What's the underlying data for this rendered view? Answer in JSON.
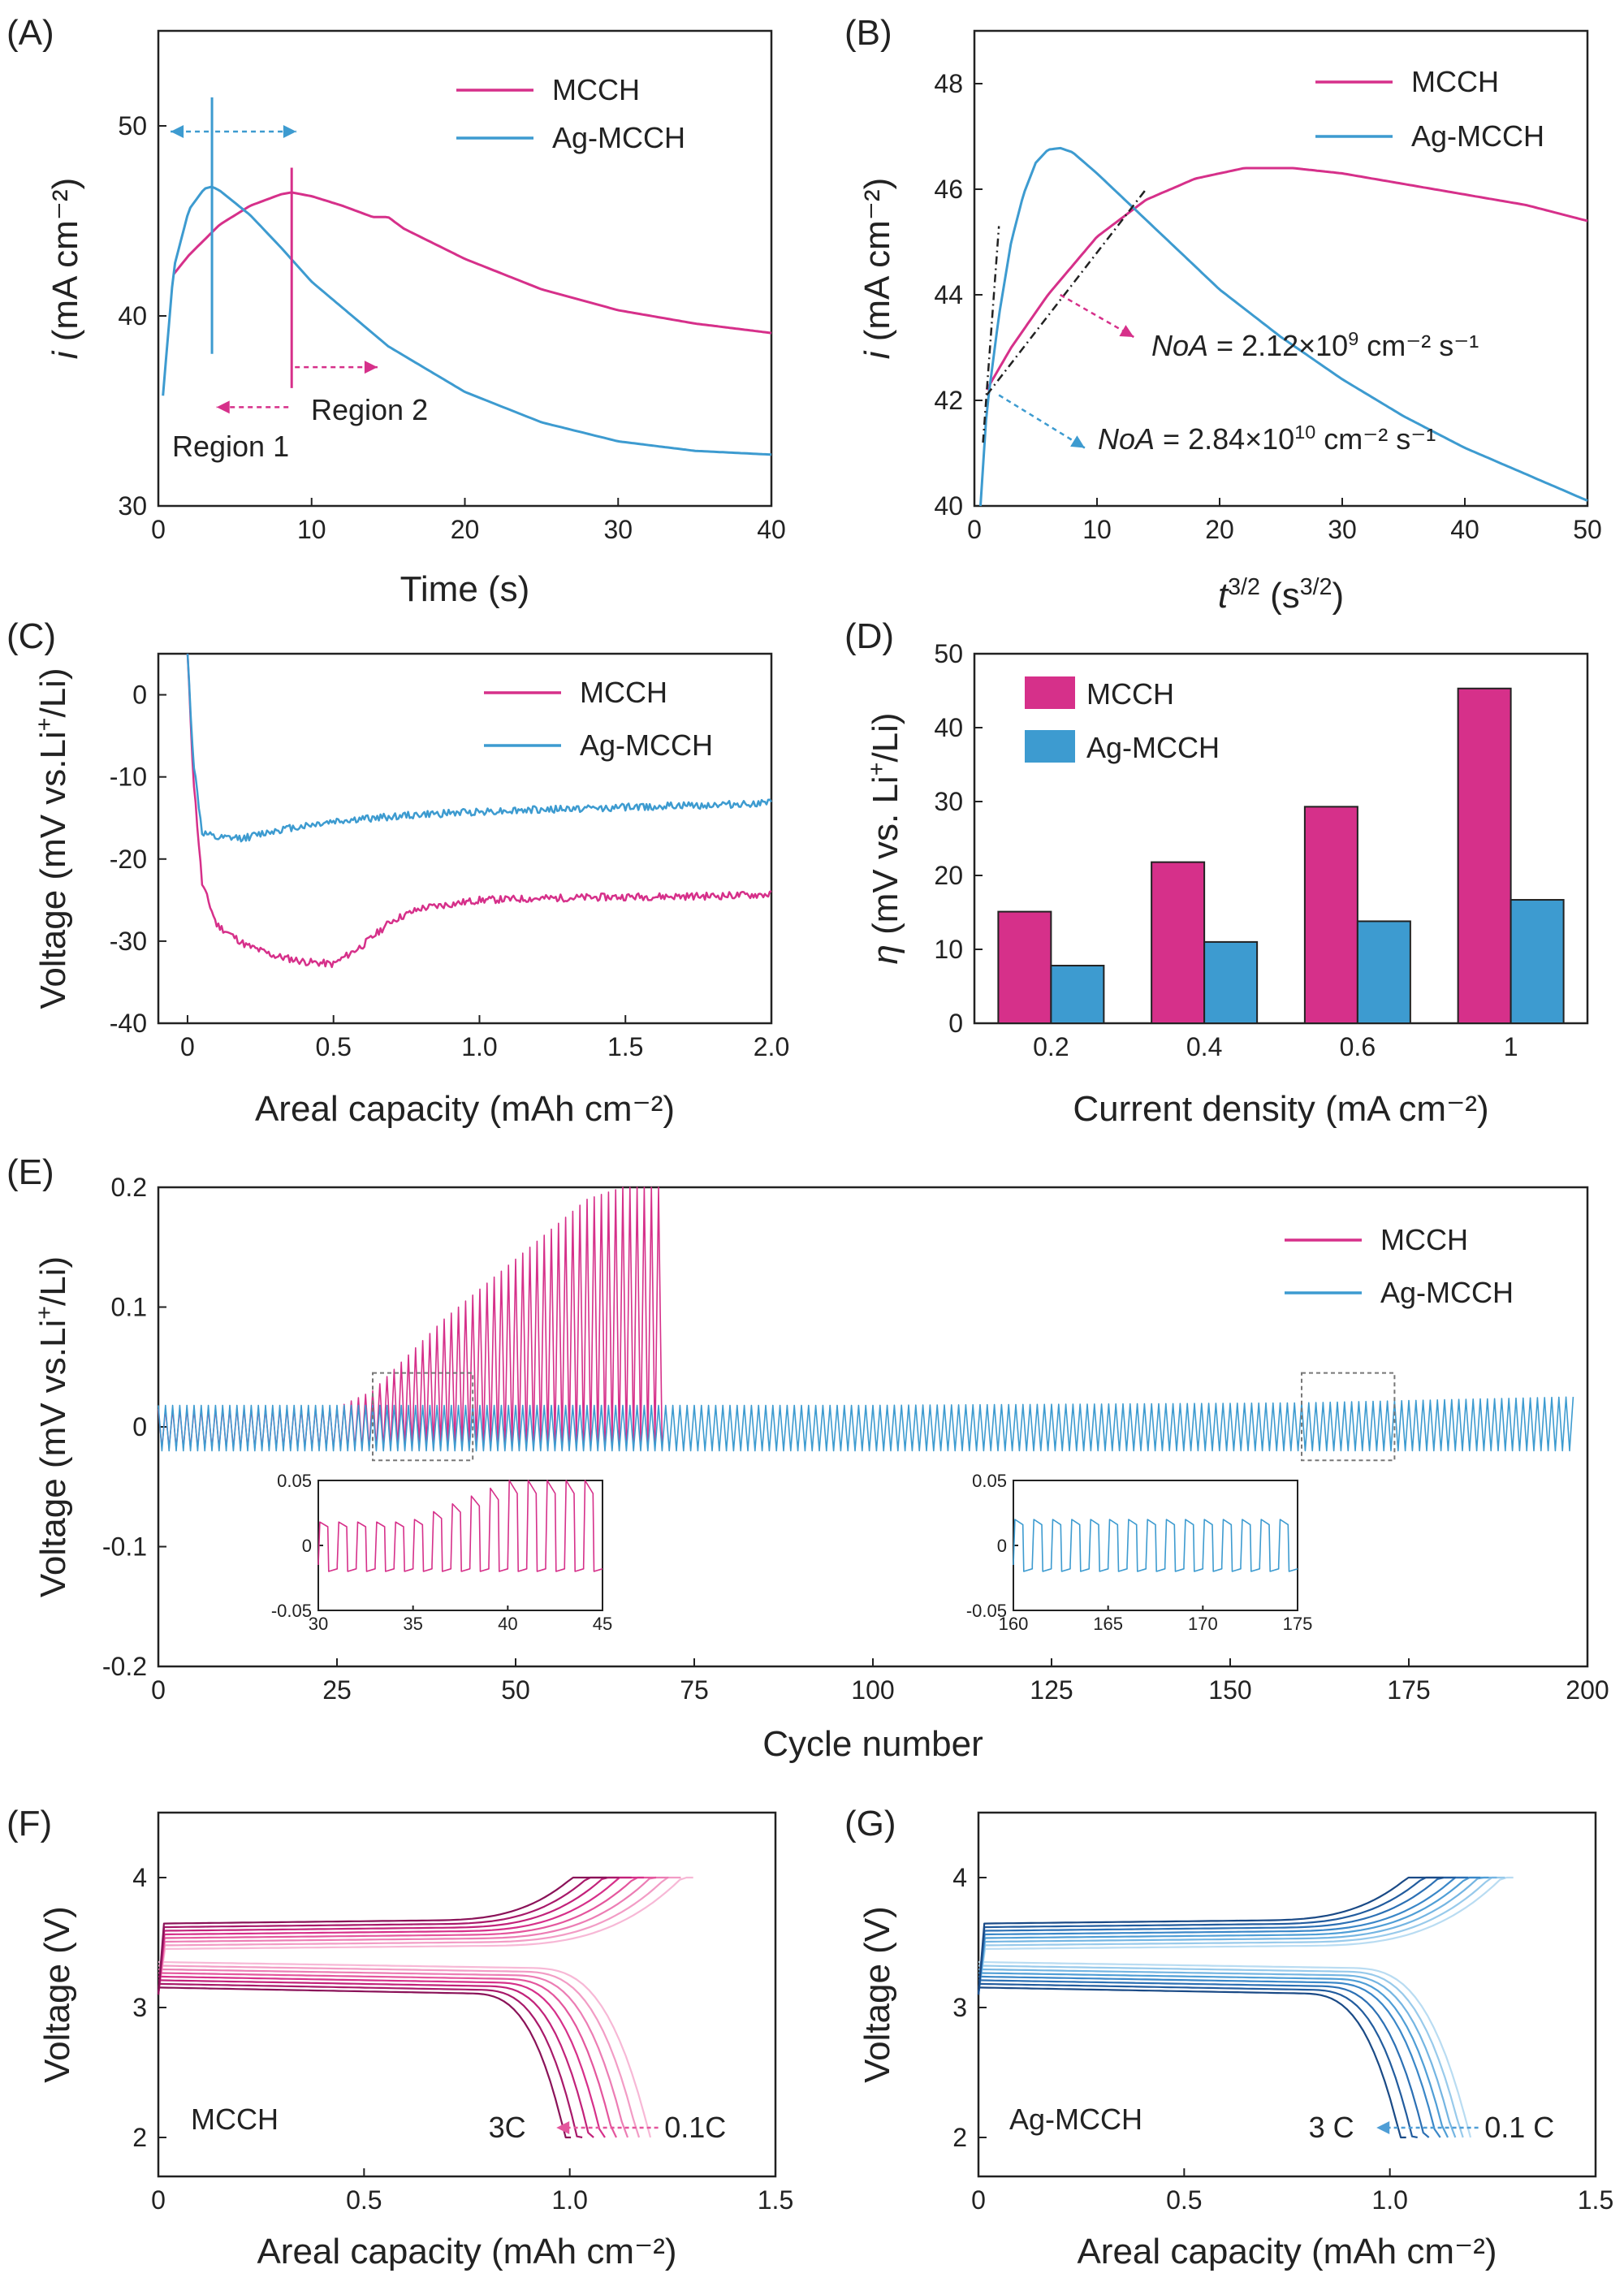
{
  "colors": {
    "mcch": "#d6308a",
    "ag_mcch": "#3d9bd0",
    "axis": "#222222"
  },
  "chart_data": [
    {
      "panel": "(A)",
      "type": "line",
      "xlabel": "Time (s)",
      "ylabel": "i (mA cm⁻²)",
      "xlim": [
        0,
        40
      ],
      "ylim": [
        30,
        55
      ],
      "xticks": [
        "0",
        "10",
        "20",
        "30",
        "40"
      ],
      "yticks": [
        "30",
        "40",
        "50"
      ],
      "legend": [
        "MCCH",
        "Ag-MCCH"
      ],
      "legend_position": "top-right",
      "annotations": [
        "Region 1",
        "Region 2"
      ],
      "series": [
        {
          "name": "MCCH",
          "x": [
            1,
            2,
            4,
            6,
            8,
            8.7,
            10,
            12,
            14,
            15,
            16,
            20,
            25,
            30,
            35,
            40
          ],
          "y": [
            42.2,
            43.2,
            44.8,
            45.8,
            46.4,
            46.5,
            46.3,
            45.8,
            45.2,
            45.2,
            44.6,
            43.0,
            41.4,
            40.3,
            39.6,
            39.1
          ]
        },
        {
          "name": "Ag-MCCH",
          "x": [
            0.3,
            1,
            2,
            3,
            3.5,
            4,
            6,
            8,
            10,
            15,
            20,
            25,
            30,
            35,
            40
          ],
          "y": [
            35.8,
            42.5,
            45.6,
            46.7,
            46.8,
            46.6,
            45.3,
            43.6,
            41.8,
            38.4,
            36.0,
            34.4,
            33.4,
            32.9,
            32.7
          ]
        }
      ]
    },
    {
      "panel": "(B)",
      "type": "line",
      "xlabel": "t^3/2 (s^3/2)",
      "ylabel": "i (mA cm⁻²)",
      "xlim": [
        0,
        50
      ],
      "ylim": [
        40,
        49
      ],
      "xticks": [
        "0",
        "10",
        "20",
        "30",
        "40",
        "50"
      ],
      "yticks": [
        "40",
        "42",
        "44",
        "46",
        "48"
      ],
      "legend": [
        "MCCH",
        "Ag-MCCH"
      ],
      "legend_position": "top-right",
      "annotations": [
        "NoA = 2.12×10⁹ cm⁻² s⁻¹",
        "NoA = 2.84×10¹⁰ cm⁻² s⁻¹"
      ],
      "series": [
        {
          "name": "MCCH",
          "x": [
            1,
            3,
            6,
            10,
            14,
            18,
            22,
            26,
            30,
            35,
            40,
            45,
            50
          ],
          "y": [
            42.2,
            43.0,
            44.0,
            45.1,
            45.8,
            46.2,
            46.4,
            46.4,
            46.3,
            46.1,
            45.9,
            45.7,
            45.4
          ]
        },
        {
          "name": "Ag-MCCH",
          "x": [
            0.5,
            1,
            2,
            3,
            4,
            5,
            6,
            7,
            8,
            10,
            15,
            20,
            25,
            30,
            35,
            40,
            45,
            50
          ],
          "y": [
            40.0,
            41.8,
            43.6,
            45.0,
            45.9,
            46.5,
            46.75,
            46.78,
            46.7,
            46.3,
            45.2,
            44.1,
            43.2,
            42.4,
            41.7,
            41.1,
            40.6,
            40.1
          ]
        }
      ]
    },
    {
      "panel": "(C)",
      "type": "line",
      "xlabel": "Areal capacity (mAh cm⁻²)",
      "ylabel": "Voltage (mV vs.Li⁺/Li)",
      "xlim": [
        -0.1,
        2.0
      ],
      "ylim": [
        -40,
        5
      ],
      "xticks": [
        "0",
        "0.5",
        "1.0",
        "1.5",
        "2.0"
      ],
      "yticks": [
        "-40",
        "-30",
        "-20",
        "-10",
        "0"
      ],
      "legend": [
        "MCCH",
        "Ag-MCCH"
      ],
      "legend_position": "top-right",
      "series": [
        {
          "name": "MCCH",
          "x": [
            0,
            0.02,
            0.05,
            0.1,
            0.2,
            0.3,
            0.4,
            0.5,
            0.6,
            0.7,
            0.8,
            1.0,
            1.2,
            1.5,
            1.8,
            2.0
          ],
          "y": [
            5,
            -10,
            -23,
            -28,
            -30.5,
            -31.8,
            -32.5,
            -32.8,
            -30.5,
            -27.5,
            -26.0,
            -25.0,
            -24.8,
            -24.6,
            -24.5,
            -24.3
          ]
        },
        {
          "name": "Ag-MCCH",
          "x": [
            0,
            0.02,
            0.05,
            0.1,
            0.2,
            0.3,
            0.5,
            0.75,
            1.0,
            1.5,
            2.0
          ],
          "y": [
            5,
            -8,
            -16.8,
            -17.5,
            -17.4,
            -16.5,
            -15.4,
            -14.7,
            -14.2,
            -13.7,
            -13.2
          ]
        }
      ]
    },
    {
      "panel": "(D)",
      "type": "bar",
      "xlabel": "Current density (mA cm⁻²)",
      "ylabel": "η (mV vs. Li⁺/Li)",
      "ylim": [
        0,
        50
      ],
      "yticks": [
        "0",
        "10",
        "20",
        "30",
        "40",
        "50"
      ],
      "categories": [
        "0.2",
        "0.4",
        "0.6",
        "1"
      ],
      "legend": [
        "MCCH",
        "Ag-MCCH"
      ],
      "legend_position": "top-left",
      "series": [
        {
          "name": "MCCH",
          "values": [
            15.1,
            21.8,
            29.3,
            45.3
          ]
        },
        {
          "name": "Ag-MCCH",
          "values": [
            7.8,
            11.0,
            13.8,
            16.7
          ]
        }
      ]
    },
    {
      "panel": "(E)",
      "type": "line",
      "xlabel": "Cycle number",
      "ylabel": "Voltage (mV vs.Li⁺/Li)",
      "xlim": [
        0,
        200
      ],
      "ylim": [
        -0.2,
        0.2
      ],
      "xticks": [
        "0",
        "25",
        "50",
        "75",
        "100",
        "125",
        "150",
        "175",
        "200"
      ],
      "yticks": [
        "-0.2",
        "-0.1",
        "0",
        "0.1",
        "0.2"
      ],
      "legend": [
        "MCCH",
        "Ag-MCCH"
      ],
      "legend_position": "top-right",
      "series": [
        {
          "name": "MCCH",
          "description_points": {
            "cycle": [
              0,
              25,
              30,
              40,
              50,
              60,
              65,
              70
            ],
            "peak_voltage": [
              0.015,
              0.016,
              0.03,
              0.09,
              0.14,
              0.19,
              0.2,
              0.2
            ]
          }
        },
        {
          "name": "Ag-MCCH",
          "description_points": {
            "cycle": [
              0,
              100,
              160,
              198
            ],
            "peak_voltage": [
              0.018,
              0.018,
              0.02,
              0.025
            ]
          }
        }
      ],
      "insets": [
        {
          "xlim": [
            30,
            45
          ],
          "ylim": [
            -0.05,
            0.05
          ],
          "xticks": [
            "30",
            "35",
            "40",
            "45"
          ],
          "yticks": [
            "-0.05",
            "0",
            "0.05"
          ],
          "series": "MCCH"
        },
        {
          "xlim": [
            160,
            175
          ],
          "ylim": [
            -0.05,
            0.05
          ],
          "xticks": [
            "160",
            "165",
            "170",
            "175"
          ],
          "yticks": [
            "-0.05",
            "0",
            "0.05"
          ],
          "series": "Ag-MCCH"
        }
      ]
    },
    {
      "panel": "(F)",
      "type": "line",
      "xlabel": "Areal capacity (mAh cm⁻²)",
      "ylabel": "Voltage (V)",
      "xlim": [
        0,
        1.5
      ],
      "ylim": [
        1.7,
        4.5
      ],
      "xticks": [
        "0",
        "0.5",
        "1.0",
        "1.5"
      ],
      "yticks": [
        "2",
        "3",
        "4"
      ],
      "label": "MCCH",
      "arrow_from": "0.1C",
      "arrow_to": "3C",
      "rate_capacities": [
        1.3,
        1.27,
        1.24,
        1.21,
        1.18,
        1.15,
        1.12,
        1.09
      ]
    },
    {
      "panel": "(G)",
      "type": "line",
      "xlabel": "Areal capacity (mAh cm⁻²)",
      "ylabel": "Voltage (V)",
      "xlim": [
        0,
        1.5
      ],
      "ylim": [
        1.7,
        4.5
      ],
      "xticks": [
        "0",
        "0.5",
        "1.0",
        "1.5"
      ],
      "yticks": [
        "2",
        "3",
        "4"
      ],
      "label": "Ag-MCCH",
      "arrow_from": "0.1 C",
      "arrow_to": "3 C",
      "rate_capacities": [
        1.3,
        1.28,
        1.26,
        1.24,
        1.22,
        1.19,
        1.16,
        1.13
      ]
    }
  ]
}
